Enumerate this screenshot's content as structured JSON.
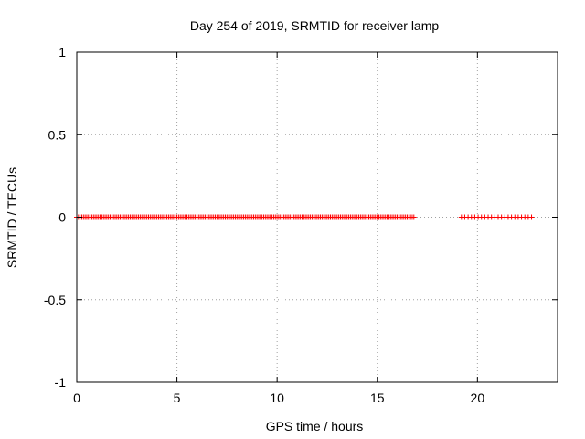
{
  "chart_data": {
    "type": "scatter",
    "title": "Day 254 of 2019, SRMTID for receiver lamp",
    "xlabel": "GPS time / hours",
    "ylabel": "SRMTID / TECUs",
    "xlim": [
      0,
      24
    ],
    "ylim": [
      -1,
      1
    ],
    "xticks": [
      0,
      5,
      10,
      15,
      20
    ],
    "yticks": [
      -1,
      -0.5,
      0,
      0.5,
      1
    ],
    "grid": true,
    "point_color": "#ff0000",
    "marker": "plus",
    "series": [
      {
        "segments": [
          {
            "x_start": 0.0,
            "x_end": 16.9,
            "step": 0.0833,
            "y": 0
          },
          {
            "x_start": 19.2,
            "x_end": 22.8,
            "step": 0.1667,
            "y": 0
          }
        ]
      }
    ]
  }
}
